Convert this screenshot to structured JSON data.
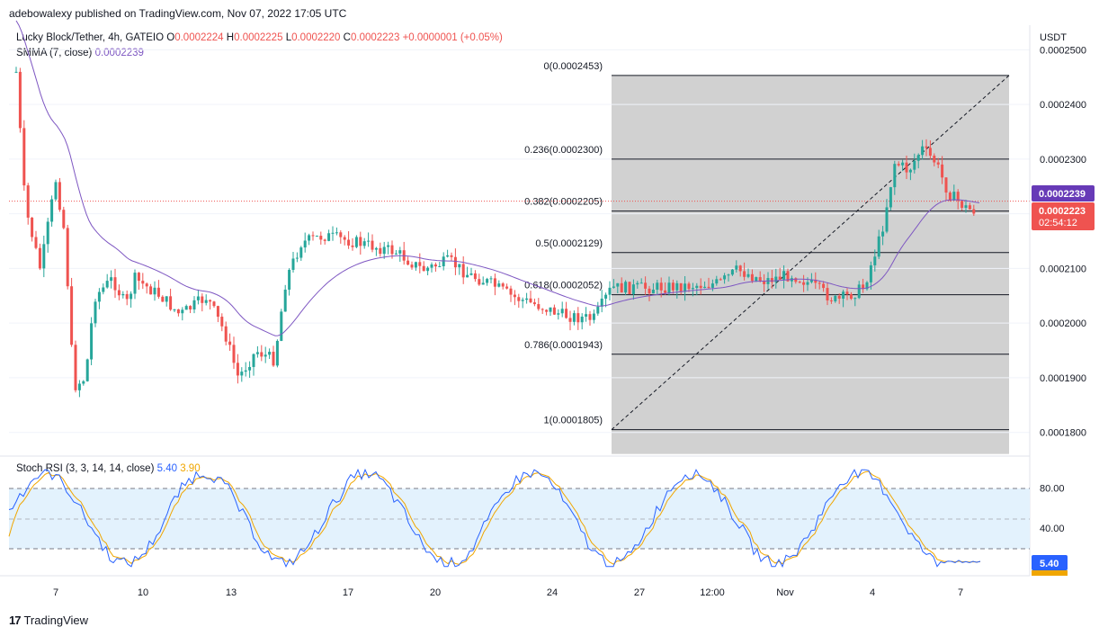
{
  "header": {
    "published": "adebowalexy published on TradingView.com, Nov 07, 2022 17:05 UTC"
  },
  "symbol": {
    "name": "Lucky Block/Tether, 4h, GATEIO",
    "o_label": "O",
    "o": "0.0002224",
    "h_label": "H",
    "h": "0.0002225",
    "l_label": "L",
    "l": "0.0002220",
    "c_label": "C",
    "c": "0.0002223",
    "change": "+0.0000001 (+0.05%)"
  },
  "smma": {
    "label": "SMMA (7, close)",
    "value": "0.0002239"
  },
  "currency": "USDT",
  "price_badges": {
    "smma": "0.0002239",
    "last": "0.0002223",
    "countdown": "02:54:12"
  },
  "stoch": {
    "label": "Stoch RSI (3, 3, 14, 14, close)",
    "k": "5.40",
    "d": "3.90"
  },
  "footer": {
    "brand": "TradingView"
  },
  "colors": {
    "up": "#26a69a",
    "down": "#ef5350",
    "smma": "#7e57c2",
    "k": "#2962ff",
    "d": "#f0a600",
    "fib_bg": "#d1d1d1",
    "rsi_band": "#e3f2fd"
  },
  "chart_data": [
    {
      "type": "candlestick",
      "title": "Lucky Block/Tether, 4h, GATEIO",
      "ylim": [
        0.000176,
        0.0002545
      ],
      "y_ticks": [
        "0.0002500",
        "0.0002400",
        "0.0002300",
        "0.0002200",
        "0.0002100",
        "0.0002000",
        "0.0001900",
        "0.0001800"
      ],
      "x_ticks": [
        "7",
        "10",
        "13",
        "17",
        "20",
        "24",
        "27",
        "12:00",
        "Nov",
        "4",
        "7"
      ],
      "fibonacci": [
        {
          "label": "0(0.0002453)",
          "value": 0.0002453
        },
        {
          "label": "0.236(0.0002300)",
          "value": 0.00023
        },
        {
          "label": "0.382(0.0002205)",
          "value": 0.0002205
        },
        {
          "label": "0.5(0.0002129)",
          "value": 0.0002129
        },
        {
          "label": "0.618(0.0002052)",
          "value": 0.0002052
        },
        {
          "label": "0.786(0.0001943)",
          "value": 0.0001943
        },
        {
          "label": "1(0.0001805)",
          "value": 0.0001805
        }
      ],
      "last_price": 0.0002223,
      "smma_last": 0.0002239
    },
    {
      "type": "line",
      "title": "Stoch RSI (3, 3, 14, 14, close)",
      "ylim": [
        0,
        100
      ],
      "y_ticks": [
        "80.00",
        "40.00"
      ],
      "series": [
        {
          "name": "K",
          "last": 5.4
        },
        {
          "name": "D",
          "last": 3.9
        }
      ]
    }
  ]
}
